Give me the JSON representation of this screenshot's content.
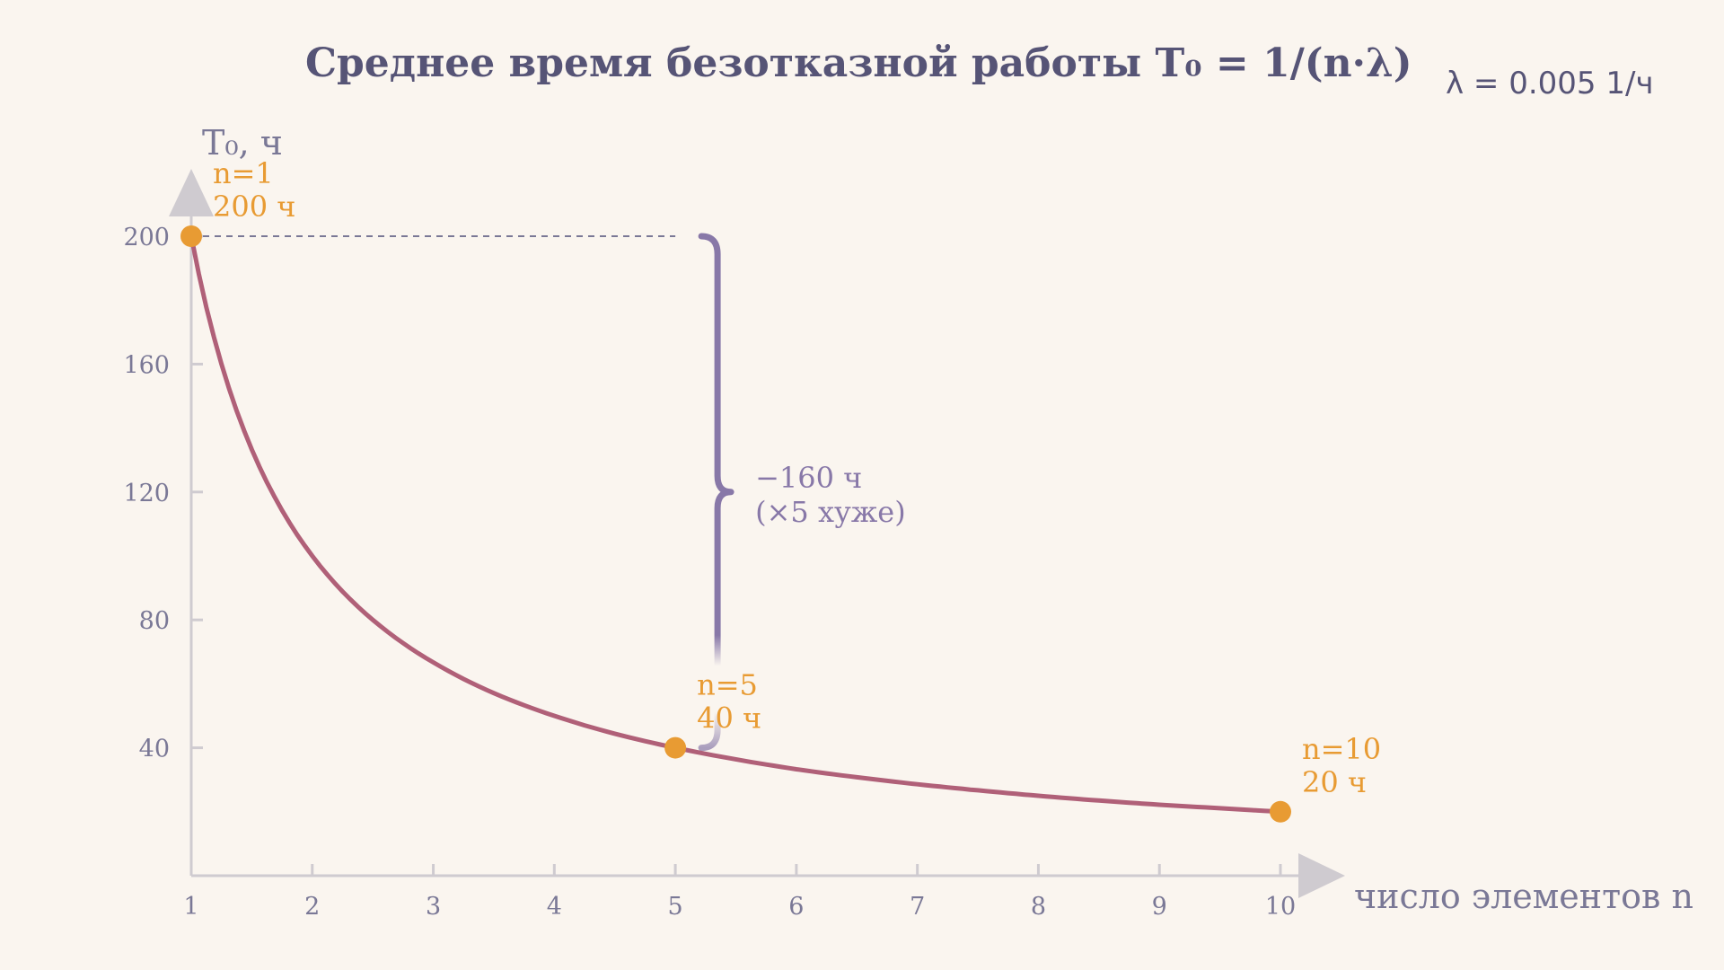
{
  "chart_data": {
    "type": "line",
    "title": "Среднее время безотказной работы T₀ = 1/(n·λ)",
    "parameter": "λ = 0.005 1/ч",
    "xlabel": "число элементов n",
    "ylabel": "T₀, ч",
    "xlim": [
      1,
      10
    ],
    "ylim": [
      0,
      200
    ],
    "x_ticks": [
      "1",
      "2",
      "3",
      "4",
      "5",
      "6",
      "7",
      "8",
      "9",
      "10"
    ],
    "y_ticks": [
      "40",
      "80",
      "120",
      "160",
      "200"
    ],
    "series": [
      {
        "x": [
          1,
          1.5,
          2,
          2.5,
          3,
          3.5,
          4,
          4.5,
          5,
          5.5,
          6,
          6.5,
          7,
          7.5,
          8,
          8.5,
          9,
          9.5,
          10
        ],
        "values": [
          200,
          133.3,
          100,
          80,
          66.7,
          57.1,
          50,
          44.4,
          40,
          36.4,
          33.3,
          30.8,
          28.6,
          26.7,
          25,
          23.5,
          22.2,
          21.1,
          20
        ]
      }
    ],
    "highlight_points": [
      {
        "x": 1,
        "y": 200,
        "label_n": "n=1",
        "label_t": "200 ч"
      },
      {
        "x": 5,
        "y": 40,
        "label_n": "n=5",
        "label_t": "40 ч"
      },
      {
        "x": 10,
        "y": 20,
        "label_n": "n=10",
        "label_t": "20 ч"
      }
    ],
    "annotation": {
      "from": 200,
      "to": 40,
      "at_x": 5,
      "line1": "−160 ч",
      "line2": "(×5 хуже)"
    },
    "colors": {
      "curve": "#b06078",
      "points": "#e89b33",
      "axis": "#cfcbd0",
      "brace": "#8878a8",
      "text": "#565476"
    }
  }
}
